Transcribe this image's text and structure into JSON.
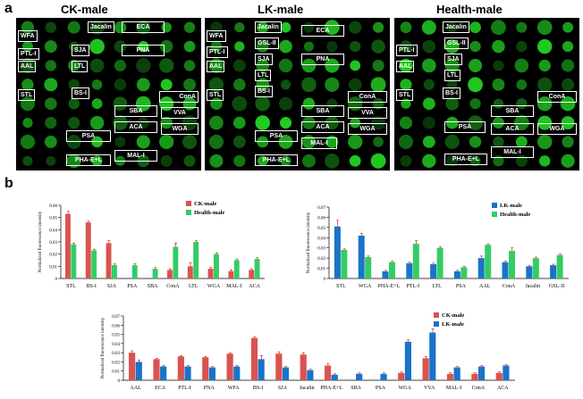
{
  "panel_a": {
    "label": "a",
    "titles": [
      "CK-male",
      "LK-male",
      "Health-male"
    ],
    "arrays": [
      {
        "labels": [
          "WFA",
          "Jacalin",
          "ECA",
          "PTL-I",
          "SJA",
          "PNA",
          "AAL",
          "LTL",
          "STL",
          "BS-I",
          "ConA",
          "SBA",
          "VVA",
          "ACA",
          "WGA",
          "PSA",
          "MAL-I",
          "PHA-E+L"
        ]
      },
      {
        "labels": [
          "WFA",
          "Jacalin",
          "GSL-II",
          "ECA",
          "PTL-I",
          "AAL",
          "SJA",
          "PNA",
          "LTL",
          "STL",
          "BS-I",
          "ConA",
          "SBA",
          "VVA",
          "ACA",
          "WGA",
          "PSA",
          "MAL-I",
          "PHA-E+L"
        ]
      },
      {
        "labels": [
          "Jacalin",
          "PTL-I",
          "GSL-II",
          "SJA",
          "AAL",
          "LTL",
          "STL",
          "BS-I",
          "ConA",
          "SBA",
          "PSA",
          "ACA",
          "WGA",
          "MAL-I",
          "PHA-E+L"
        ]
      }
    ]
  },
  "panel_b": {
    "label": "b"
  },
  "colors": {
    "ck": "#d9534f",
    "health": "#33cc66",
    "lk": "#1a73c8",
    "spot": "#22cc22",
    "error": "#d00000"
  },
  "chart_data": [
    {
      "type": "bar",
      "ylabel": "Normalized fluorescence intensity",
      "ylim": [
        0,
        0.06
      ],
      "yticks": [
        "0",
        "0.01",
        "0.02",
        "0.03",
        "0.04",
        "0.05",
        "0.06"
      ],
      "legend": "top-right",
      "categories": [
        "STL",
        "BS-I",
        "SJA",
        "PSA",
        "SBA",
        "ConA",
        "LTL",
        "WGA",
        "MAL-I",
        "ACA"
      ],
      "series": [
        {
          "name": "CK-male",
          "values": [
            0.053,
            0.046,
            0.029,
            0,
            0,
            0.007,
            0.01,
            0.008,
            0.006,
            0.007
          ],
          "errors": [
            0.002,
            0.001,
            0.002,
            0,
            0,
            0.001,
            0.003,
            0.001,
            0.001,
            0.001
          ]
        },
        {
          "name": "Health-male",
          "values": [
            0.028,
            0.023,
            0.011,
            0.011,
            0.008,
            0.026,
            0.03,
            0.02,
            0.015,
            0.016
          ],
          "errors": [
            0.001,
            0.001,
            0.001,
            0.001,
            0.001,
            0.003,
            0.001,
            0.001,
            0.001,
            0.001
          ]
        }
      ]
    },
    {
      "type": "bar",
      "ylabel": "Normalized fluorescence intensity",
      "ylim": [
        0,
        0.07
      ],
      "yticks": [
        "0",
        "0.01",
        "0.02",
        "0.03",
        "0.04",
        "0.05",
        "0.06",
        "0.07"
      ],
      "legend": "top-right",
      "categories": [
        "STL",
        "WGA",
        "PHA-E+L",
        "PTL-I",
        "LTL",
        "PSA",
        "AAL",
        "ConA",
        "Jacalin",
        "GSL-II"
      ],
      "series": [
        {
          "name": "LK-male",
          "values": [
            0.051,
            0.042,
            0.007,
            0.015,
            0.014,
            0.007,
            0.02,
            0.016,
            0.012,
            0.013
          ],
          "errors": [
            0.006,
            0.002,
            0.001,
            0.001,
            0.001,
            0.001,
            0.002,
            0.001,
            0.001,
            0.001
          ]
        },
        {
          "name": "Health-male",
          "values": [
            0.028,
            0.021,
            0.016,
            0.034,
            0.03,
            0.011,
            0.033,
            0.027,
            0.02,
            0.023
          ],
          "errors": [
            0.001,
            0.001,
            0.001,
            0.003,
            0.001,
            0.001,
            0.001,
            0.003,
            0.001,
            0.001
          ]
        }
      ]
    },
    {
      "type": "bar",
      "ylabel": "Normalized fluorescence intensity",
      "ylim": [
        0,
        0.07
      ],
      "yticks": [
        "0",
        "0.01",
        "0.02",
        "0.03",
        "0.04",
        "0.05",
        "0.06",
        "0.07"
      ],
      "legend": "top-right",
      "categories": [
        "AAL",
        "ECA",
        "PTL-I",
        "PNA",
        "WFA",
        "BS-I",
        "SJA",
        "Jacalin",
        "PHA-E+L",
        "SBA",
        "PSA",
        "WGA",
        "VVA",
        "MAL-I",
        "ConA",
        "ACA"
      ],
      "series": [
        {
          "name": "CK-male",
          "values": [
            0.03,
            0.023,
            0.026,
            0.025,
            0.029,
            0.046,
            0.029,
            0.028,
            0.016,
            0,
            0,
            0.008,
            0.024,
            0.007,
            0.007,
            0.008
          ],
          "errors": [
            0.002,
            0.001,
            0.001,
            0.001,
            0.001,
            0.001,
            0.002,
            0.002,
            0.002,
            0,
            0,
            0.001,
            0.002,
            0.001,
            0.001,
            0.001
          ]
        },
        {
          "name": "LK-male",
          "values": [
            0.02,
            0.015,
            0.015,
            0.014,
            0.015,
            0.023,
            0.014,
            0.011,
            0.006,
            0.007,
            0.007,
            0.042,
            0.052,
            0.014,
            0.015,
            0.016
          ],
          "errors": [
            0.002,
            0.001,
            0.001,
            0.001,
            0.001,
            0.004,
            0.001,
            0.001,
            0.001,
            0.001,
            0.001,
            0.002,
            0.004,
            0.001,
            0.001,
            0.001
          ]
        }
      ]
    }
  ]
}
